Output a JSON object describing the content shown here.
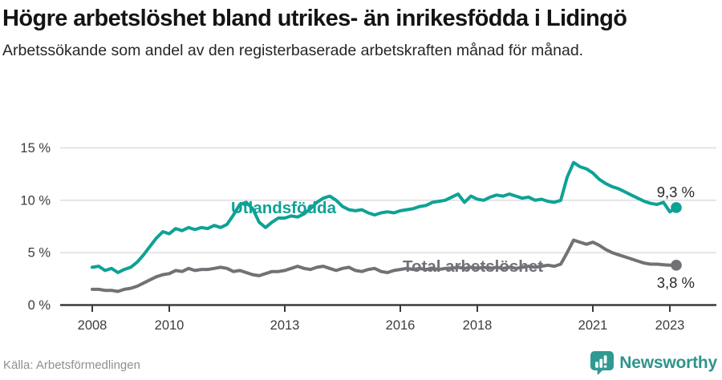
{
  "header": {
    "title": "Högre arbetslöshet bland utrikes- än inrikesfödda i Lidingö",
    "subtitle": "Arbetssökande som andel av den registerbaserade arbetskraften månad för månad."
  },
  "chart_data": {
    "type": "line",
    "title": "Högre arbetslöshet bland utrikes- än inrikesfödda i Lidingö",
    "unit": "%",
    "x_start_year": 2008,
    "x_step_years": 0.166667,
    "xlim": [
      2007.45,
      2023.75
    ],
    "ylim": [
      0,
      15.5
    ],
    "grid": "horizontal",
    "y_ticks": [
      {
        "value": 0,
        "label": "0 %"
      },
      {
        "value": 5,
        "label": "5 %"
      },
      {
        "value": 10,
        "label": "10 %"
      },
      {
        "value": 15,
        "label": "15 %"
      }
    ],
    "x_ticks": [
      {
        "value": 2008,
        "label": "2008"
      },
      {
        "value": 2010,
        "label": "2010"
      },
      {
        "value": 2013,
        "label": "2013"
      },
      {
        "value": 2016,
        "label": "2016"
      },
      {
        "value": 2018,
        "label": "2018"
      },
      {
        "value": 2021,
        "label": "2021"
      },
      {
        "value": 2023,
        "label": "2023"
      }
    ],
    "series": [
      {
        "name": "Utlandsfödda",
        "color": "#0ea296",
        "end_label": "9,3 %",
        "end_value": 9.3,
        "values": [
          3.6,
          3.7,
          3.3,
          3.5,
          3.1,
          3.4,
          3.6,
          4.1,
          4.8,
          5.6,
          6.4,
          7.0,
          6.8,
          7.3,
          7.1,
          7.4,
          7.2,
          7.4,
          7.3,
          7.6,
          7.4,
          7.7,
          8.6,
          9.6,
          9.8,
          9.2,
          7.9,
          7.4,
          7.9,
          8.3,
          8.3,
          8.5,
          8.4,
          8.7,
          9.2,
          9.8,
          10.2,
          10.4,
          10.0,
          9.4,
          9.1,
          9.0,
          9.1,
          8.8,
          8.6,
          8.8,
          8.9,
          8.8,
          9.0,
          9.1,
          9.2,
          9.4,
          9.5,
          9.8,
          9.9,
          10.0,
          10.3,
          10.6,
          9.8,
          10.4,
          10.1,
          10.0,
          10.3,
          10.5,
          10.4,
          10.6,
          10.4,
          10.2,
          10.3,
          10.0,
          10.1,
          9.9,
          9.8,
          10.0,
          12.2,
          13.6,
          13.2,
          13.0,
          12.6,
          12.0,
          11.6,
          11.3,
          11.1,
          10.8,
          10.5,
          10.2,
          9.9,
          9.7,
          9.6,
          9.8,
          8.9,
          9.3
        ]
      },
      {
        "name": "Total arbetslöshet",
        "color": "#717176",
        "end_label": "3,8 %",
        "end_value": 3.8,
        "values": [
          1.5,
          1.5,
          1.4,
          1.4,
          1.3,
          1.5,
          1.6,
          1.8,
          2.1,
          2.4,
          2.7,
          2.9,
          3.0,
          3.3,
          3.2,
          3.5,
          3.3,
          3.4,
          3.4,
          3.5,
          3.6,
          3.5,
          3.2,
          3.3,
          3.1,
          2.9,
          2.8,
          3.0,
          3.2,
          3.2,
          3.3,
          3.5,
          3.7,
          3.5,
          3.4,
          3.6,
          3.7,
          3.5,
          3.3,
          3.5,
          3.6,
          3.3,
          3.2,
          3.4,
          3.5,
          3.2,
          3.1,
          3.3,
          3.4,
          3.5,
          3.4,
          3.5,
          3.4,
          3.5,
          3.4,
          3.5,
          3.5,
          3.6,
          3.5,
          3.6,
          3.5,
          3.6,
          3.5,
          3.6,
          3.5,
          3.6,
          3.5,
          3.6,
          3.7,
          3.6,
          3.7,
          3.8,
          3.7,
          3.9,
          5.0,
          6.2,
          6.0,
          5.8,
          6.0,
          5.7,
          5.3,
          5.0,
          4.8,
          4.6,
          4.4,
          4.2,
          4.0,
          3.9,
          3.9,
          3.85,
          3.8,
          3.8
        ]
      }
    ],
    "colors": {
      "grid": "#d9d9d9",
      "axis": "#3a3a3a",
      "tick_text": "#3d3d3d",
      "end_label_text": "#2a2a2a"
    }
  },
  "footer": {
    "source": "Källa: Arbetsförmedlingen",
    "brand": "Newsworthy"
  }
}
